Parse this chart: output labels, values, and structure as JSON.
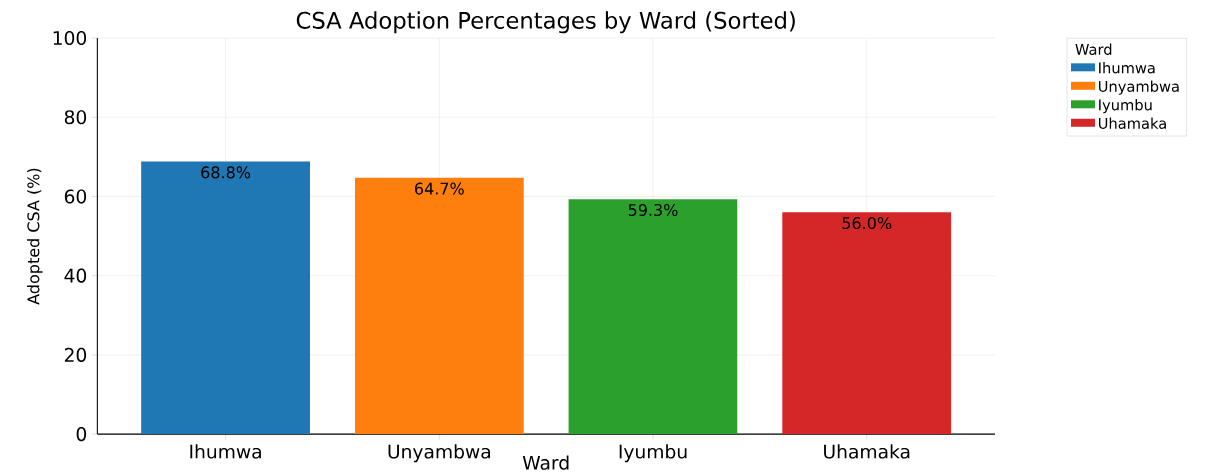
{
  "chart_data": {
    "type": "bar",
    "title": "CSA Adoption Percentages by Ward (Sorted)",
    "xlabel": "Ward",
    "ylabel": "Adopted CSA (%)",
    "legend_title": "Ward",
    "categories": [
      "Ihumwa",
      "Unyambwa",
      "Iyumbu",
      "Uhamaka"
    ],
    "series": [
      {
        "name": "Ihumwa",
        "color": "#1f77b4",
        "values": [
          68.8,
          null,
          null,
          null
        ],
        "value_labels": [
          "68.8%",
          null,
          null,
          null
        ]
      },
      {
        "name": "Unyambwa",
        "color": "#ff7f0e",
        "values": [
          null,
          64.7,
          null,
          null
        ],
        "value_labels": [
          null,
          "64.7%",
          null,
          null
        ]
      },
      {
        "name": "Iyumbu",
        "color": "#2ca02c",
        "values": [
          null,
          null,
          59.3,
          null
        ],
        "value_labels": [
          null,
          null,
          "59.3%",
          null
        ]
      },
      {
        "name": "Uhamaka",
        "color": "#d62728",
        "values": [
          null,
          null,
          null,
          56.0
        ],
        "value_labels": [
          null,
          null,
          null,
          "56.0%"
        ]
      }
    ],
    "ylim": [
      0,
      100
    ],
    "yticks": [
      0,
      20,
      40,
      60,
      80,
      100
    ],
    "grid": true,
    "legend": "top right"
  }
}
